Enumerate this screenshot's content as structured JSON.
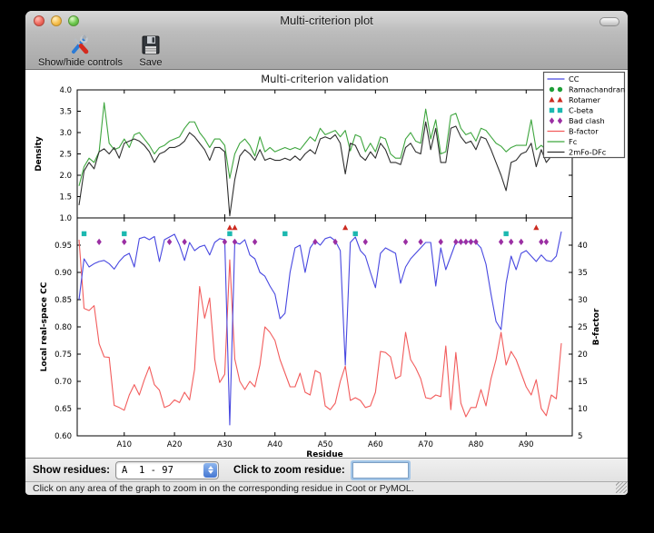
{
  "window": {
    "title": "Multi-criterion plot",
    "traffic_light_colors": {
      "close": "#ee6a5f",
      "minimize": "#f6bf4e",
      "zoom": "#6cc74e"
    }
  },
  "toolbar": {
    "buttons": [
      {
        "label": "Show/hide controls",
        "icon": "tools-icon"
      },
      {
        "label": "Save",
        "icon": "save-icon"
      }
    ]
  },
  "controls": {
    "show_residues_label": "Show residues:",
    "residue_range_value": "A  1 - 97",
    "zoom_residue_label": "Click to zoom residue:",
    "zoom_input_value": ""
  },
  "status_bar": {
    "text": "Click on any area of the graph to zoom in on the corresponding residue in Coot or PyMOL."
  },
  "chart_data": {
    "type": "line",
    "title": "Multi-criterion validation",
    "x": {
      "label": "Residue",
      "range": [
        1,
        97
      ],
      "tick_values": [
        10,
        20,
        30,
        40,
        50,
        60,
        70,
        80,
        90
      ],
      "tick_labels": [
        "A10",
        "A20",
        "A30",
        "A40",
        "A50",
        "A60",
        "A70",
        "A80",
        "A90"
      ]
    },
    "legend": {
      "position": "upper right",
      "entries": [
        {
          "label": "CC",
          "swatch": "line",
          "color": "#4848e0"
        },
        {
          "label": "Ramachandran",
          "swatch": "circle",
          "color": "#1e9e38"
        },
        {
          "label": "Rotamer",
          "swatch": "triangle",
          "color": "#cc2b20"
        },
        {
          "label": "C-beta",
          "swatch": "square",
          "color": "#1cb8b0"
        },
        {
          "label": "Bad clash",
          "swatch": "diamond",
          "color": "#9b2fa3"
        },
        {
          "label": "B-factor",
          "swatch": "line",
          "color": "#f25c5c"
        },
        {
          "label": "Fc",
          "swatch": "line",
          "color": "#3fa63f"
        },
        {
          "label": "2mFo-DFc",
          "swatch": "line",
          "color": "#2e2e2e"
        }
      ]
    },
    "panels": [
      {
        "ylabel": "Density",
        "ylim": [
          1.0,
          4.0
        ],
        "ytick_values": [
          1.0,
          1.5,
          2.0,
          2.5,
          3.0,
          3.5,
          4.0
        ],
        "ytick_labels": [
          "1.0",
          "1.5",
          "2.0",
          "2.5",
          "3.0",
          "3.5",
          "4.0"
        ],
        "series": [
          {
            "name": "Fc",
            "color": "#3fa63f",
            "values": [
              1.75,
              2.2,
              2.4,
              2.3,
              2.55,
              3.7,
              2.75,
              2.6,
              2.65,
              2.85,
              2.65,
              2.95,
              3.0,
              2.85,
              2.7,
              2.5,
              2.65,
              2.7,
              2.8,
              2.85,
              2.9,
              3.1,
              3.25,
              3.25,
              3.0,
              2.85,
              2.65,
              2.85,
              2.85,
              2.7,
              1.93,
              2.5,
              2.75,
              2.85,
              2.7,
              2.45,
              2.9,
              2.55,
              2.65,
              2.55,
              2.6,
              2.65,
              2.6,
              2.65,
              2.6,
              2.75,
              2.9,
              2.8,
              3.1,
              2.95,
              3.0,
              3.05,
              2.9,
              3.05,
              2.57,
              2.95,
              2.9,
              2.55,
              2.75,
              2.55,
              2.9,
              2.85,
              2.5,
              2.4,
              2.4,
              2.85,
              3.0,
              2.8,
              2.75,
              3.55,
              2.85,
              3.3,
              2.5,
              2.55,
              3.4,
              3.45,
              3.1,
              2.95,
              3.0,
              2.8,
              3.1,
              3.05,
              2.9,
              2.75,
              2.68,
              2.55,
              2.65,
              2.7,
              2.7,
              2.7,
              3.3,
              2.6,
              2.7,
              2.6,
              2.75,
              3.1,
              3.2
            ]
          },
          {
            "name": "2mFo-DFc",
            "color": "#2e2e2e",
            "values": [
              1.3,
              2.1,
              2.3,
              2.15,
              2.55,
              2.62,
              2.5,
              2.65,
              2.4,
              2.75,
              2.8,
              2.85,
              2.8,
              2.7,
              2.55,
              2.3,
              2.5,
              2.55,
              2.65,
              2.65,
              2.7,
              2.8,
              3.0,
              2.9,
              2.75,
              2.6,
              2.35,
              2.65,
              2.65,
              2.55,
              1.05,
              1.9,
              2.45,
              2.6,
              2.5,
              2.35,
              2.6,
              2.35,
              2.4,
              2.35,
              2.35,
              2.4,
              2.35,
              2.45,
              2.35,
              2.5,
              2.6,
              2.5,
              2.85,
              2.9,
              2.85,
              2.95,
              2.75,
              2.03,
              2.75,
              2.7,
              2.45,
              2.35,
              2.55,
              2.4,
              2.75,
              2.6,
              2.3,
              2.3,
              2.25,
              2.65,
              2.75,
              2.55,
              2.5,
              3.25,
              2.6,
              3.1,
              2.3,
              2.3,
              3.1,
              3.15,
              2.9,
              2.75,
              2.8,
              2.6,
              2.9,
              2.85,
              2.6,
              2.3,
              2.0,
              1.64,
              2.3,
              2.35,
              2.5,
              2.55,
              2.75,
              2.2,
              2.6,
              2.3,
              2.45,
              2.8,
              3.0
            ]
          }
        ]
      },
      {
        "ylabel_left": "Local real-space CC",
        "ylim_left": [
          0.6,
          1.0
        ],
        "ytick_values_left": [
          0.6,
          0.65,
          0.7,
          0.75,
          0.8,
          0.85,
          0.9,
          0.95
        ],
        "ytick_labels_left": [
          "0.60",
          "0.65",
          "0.70",
          "0.75",
          "0.80",
          "0.85",
          "0.90",
          "0.95"
        ],
        "ylabel_right": "B-factor",
        "ylim_right": [
          5,
          45
        ],
        "ytick_values_right": [
          5,
          10,
          15,
          20,
          25,
          30,
          35,
          40
        ],
        "ytick_labels_right": [
          "5",
          "10",
          "15",
          "20",
          "25",
          "30",
          "35",
          "40"
        ],
        "series": [
          {
            "name": "B-factor",
            "axis": "right",
            "color": "#f25c5c",
            "values": [
              41.0,
              28.4,
              28.0,
              28.9,
              21.9,
              19.5,
              19.4,
              10.6,
              10.2,
              9.7,
              12.5,
              14.4,
              12.5,
              15.3,
              17.7,
              14.4,
              13.4,
              10.2,
              10.6,
              11.6,
              11.1,
              13.0,
              11.6,
              17.2,
              32.4,
              26.6,
              30.3,
              19.1,
              14.8,
              16.3,
              37.3,
              19.1,
              15.0,
              13.5,
              15.0,
              14.0,
              18.0,
              25.0,
              24.0,
              22.5,
              19.0,
              16.5,
              14.0,
              14.0,
              16.5,
              13.0,
              12.5,
              17.0,
              16.5,
              10.5,
              9.8,
              11.0,
              15.0,
              17.8,
              11.5,
              12.0,
              11.5,
              10.2,
              10.5,
              13.0,
              20.5,
              20.3,
              19.5,
              15.5,
              16.0,
              24.0,
              19.0,
              17.5,
              15.5,
              12.0,
              11.8,
              12.5,
              12.2,
              21.5,
              9.8,
              20.3,
              11.0,
              8.5,
              10.2,
              10.2,
              13.5,
              10.5,
              15.5,
              19.0,
              24.0,
              18.0,
              20.5,
              19.0,
              16.5,
              14.0,
              12.5,
              15.3,
              10.0,
              8.7,
              12.5,
              11.8,
              22.0
            ]
          },
          {
            "name": "CC",
            "axis": "left",
            "color": "#4848e0",
            "values": [
              0.85,
              0.925,
              0.91,
              0.916,
              0.92,
              0.922,
              0.916,
              0.906,
              0.92,
              0.93,
              0.935,
              0.91,
              0.962,
              0.965,
              0.96,
              0.966,
              0.92,
              0.96,
              0.965,
              0.97,
              0.95,
              0.922,
              0.955,
              0.94,
              0.947,
              0.95,
              0.932,
              0.955,
              0.962,
              0.96,
              0.62,
              0.955,
              0.952,
              0.96,
              0.932,
              0.925,
              0.9,
              0.893,
              0.875,
              0.86,
              0.815,
              0.825,
              0.9,
              0.945,
              0.95,
              0.9,
              0.945,
              0.958,
              0.95,
              0.962,
              0.965,
              0.958,
              0.94,
              0.73,
              0.955,
              0.965,
              0.94,
              0.93,
              0.9,
              0.872,
              0.935,
              0.945,
              0.94,
              0.935,
              0.88,
              0.91,
              0.925,
              0.935,
              0.945,
              0.955,
              0.955,
              0.875,
              0.945,
              0.905,
              0.93,
              0.955,
              0.955,
              0.955,
              0.958,
              0.955,
              0.945,
              0.915,
              0.86,
              0.81,
              0.795,
              0.88,
              0.93,
              0.905,
              0.935,
              0.94,
              0.93,
              0.92,
              0.932,
              0.922,
              0.92,
              0.93,
              0.975
            ]
          }
        ],
        "markers": [
          {
            "name": "Ramachandran",
            "shape": "circle",
            "color": "#1e9e38",
            "y_left": 0.99,
            "residues": []
          },
          {
            "name": "Rotamer",
            "shape": "triangle",
            "color": "#cc2b20",
            "y_left": 0.982,
            "residues": [
              31,
              32,
              54,
              92
            ]
          },
          {
            "name": "C-beta",
            "shape": "square",
            "color": "#1cb8b0",
            "y_left": 0.971,
            "residues": [
              2,
              10,
              31,
              42,
              56,
              86
            ]
          },
          {
            "name": "Bad clash",
            "shape": "diamond",
            "color": "#9b2fa3",
            "y_left": 0.956,
            "residues": [
              5,
              10,
              19,
              22,
              30,
              32,
              36,
              48,
              52,
              58,
              66,
              69,
              73,
              76,
              77,
              78,
              79,
              80,
              85,
              87,
              89,
              93,
              94
            ]
          }
        ]
      }
    ]
  }
}
